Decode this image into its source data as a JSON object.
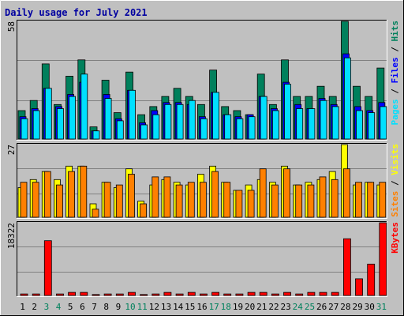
{
  "title": "Daily usage for July 2021",
  "colors": {
    "background": "#c0c0c0",
    "title": "#0000a0",
    "hits": "#00805c",
    "files": "#0000ff",
    "pages": "#00e0ff",
    "visits": "#ffff00",
    "sites": "#ff8000",
    "kbytes": "#ff0000",
    "weekend": "#00805c",
    "weekday": "#000000"
  },
  "chart_data": [
    {
      "type": "bar",
      "panel": "hits-files-pages",
      "ymax_label": "58",
      "right_label": [
        {
          "text": "Pages",
          "color": "#00e0ff"
        },
        {
          "text": " / ",
          "color": "#000000"
        },
        {
          "text": "Files",
          "color": "#0000ff"
        },
        {
          "text": " / ",
          "color": "#000000"
        },
        {
          "text": "Hits",
          "color": "#00805c"
        }
      ],
      "categories": [
        "1",
        "2",
        "3",
        "4",
        "5",
        "6",
        "7",
        "8",
        "9",
        "10",
        "11",
        "12",
        "13",
        "14",
        "15",
        "16",
        "17",
        "18",
        "19",
        "20",
        "21",
        "22",
        "23",
        "24",
        "25",
        "26",
        "27",
        "28",
        "29",
        "30",
        "31"
      ],
      "weekend_days": [
        "3",
        "4",
        "10",
        "11",
        "17",
        "18",
        "24",
        "25",
        "31"
      ],
      "ylim": [
        0,
        58
      ],
      "series": [
        {
          "name": "Hits",
          "values": [
            14,
            19,
            37,
            17,
            31,
            39,
            6,
            29,
            13,
            33,
            12,
            16,
            21,
            25,
            21,
            17,
            34,
            16,
            14,
            12,
            32,
            17,
            39,
            21,
            21,
            26,
            21,
            58,
            26,
            21,
            35
          ]
        },
        {
          "name": "Files",
          "values": [
            11,
            15,
            25,
            16,
            22,
            28,
            4,
            22,
            10,
            24,
            8,
            14,
            18,
            18,
            17,
            11,
            23,
            12,
            11,
            12,
            21,
            15,
            28,
            17,
            15,
            20,
            17,
            42,
            16,
            14,
            18
          ]
        },
        {
          "name": "Pages",
          "values": [
            10,
            14,
            25,
            15,
            21,
            32,
            4,
            20,
            9,
            24,
            7,
            12,
            17,
            17,
            19,
            10,
            23,
            12,
            10,
            11,
            21,
            14,
            27,
            15,
            15,
            19,
            16,
            40,
            14,
            13,
            16
          ]
        }
      ]
    },
    {
      "type": "bar",
      "panel": "visits-sites",
      "ymax_label": "27",
      "right_label": [
        {
          "text": "Sites",
          "color": "#ff8000"
        },
        {
          "text": " / ",
          "color": "#000000"
        },
        {
          "text": "Visits",
          "color": "#ffff00"
        }
      ],
      "categories": [
        "1",
        "2",
        "3",
        "4",
        "5",
        "6",
        "7",
        "8",
        "9",
        "10",
        "11",
        "12",
        "13",
        "14",
        "15",
        "16",
        "17",
        "18",
        "19",
        "20",
        "21",
        "22",
        "23",
        "24",
        "25",
        "26",
        "27",
        "28",
        "29",
        "30",
        "31"
      ],
      "ylim": [
        0,
        27
      ],
      "series": [
        {
          "name": "Visits",
          "values": [
            11,
            14,
            17,
            14,
            19,
            19,
            5,
            13,
            11,
            18,
            6,
            12,
            14,
            13,
            12,
            16,
            19,
            13,
            10,
            12,
            14,
            13,
            19,
            12,
            13,
            14,
            17,
            27,
            12,
            13,
            12
          ]
        },
        {
          "name": "Sites",
          "values": [
            13,
            13,
            17,
            12,
            17,
            19,
            3,
            13,
            12,
            16,
            5,
            15,
            15,
            12,
            13,
            13,
            17,
            13,
            10,
            10,
            18,
            12,
            18,
            12,
            12,
            15,
            14,
            18,
            13,
            13,
            13
          ]
        }
      ]
    },
    {
      "type": "bar",
      "panel": "kbytes",
      "ymax_label": "18322",
      "right_label": [
        {
          "text": "KBytes",
          "color": "#ff0000"
        }
      ],
      "categories": [
        "1",
        "2",
        "3",
        "4",
        "5",
        "6",
        "7",
        "8",
        "9",
        "10",
        "11",
        "12",
        "13",
        "14",
        "15",
        "16",
        "17",
        "18",
        "19",
        "20",
        "21",
        "22",
        "23",
        "24",
        "25",
        "26",
        "27",
        "28",
        "29",
        "30",
        "31"
      ],
      "ylim": [
        0,
        18322
      ],
      "series": [
        {
          "name": "KBytes",
          "values": [
            380,
            380,
            13800,
            380,
            780,
            780,
            230,
            380,
            380,
            780,
            230,
            380,
            780,
            380,
            780,
            380,
            780,
            380,
            380,
            780,
            780,
            380,
            780,
            380,
            780,
            780,
            780,
            14300,
            4200,
            7900,
            18322
          ]
        }
      ]
    }
  ]
}
